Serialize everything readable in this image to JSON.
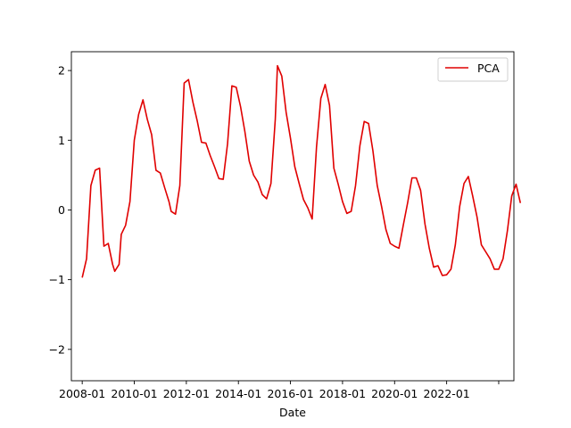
{
  "chart_data": {
    "type": "line",
    "title": "",
    "xlabel": "Date",
    "ylabel": "",
    "x_ticks": [
      "2008-01",
      "2010-01",
      "2012-01",
      "2014-01",
      "2016-01",
      "2018-01",
      "2020-01",
      "2022-01",
      ""
    ],
    "y_ticks": [
      "−2",
      "−1",
      "0",
      "1",
      "2"
    ],
    "xlim": [
      "2007-08",
      "2024-08"
    ],
    "ylim": [
      -2.45,
      2.27
    ],
    "grid": false,
    "legend_position": "top-right",
    "series": [
      {
        "name": "PCA",
        "color": "#e00000",
        "points": [
          [
            "2008-01",
            -0.97
          ],
          [
            "2008-03",
            -0.7
          ],
          [
            "2008-05",
            0.35
          ],
          [
            "2008-07",
            0.57
          ],
          [
            "2008-09",
            0.6
          ],
          [
            "2008-11",
            -0.52
          ],
          [
            "2009-01",
            -0.48
          ],
          [
            "2009-03",
            -0.78
          ],
          [
            "2009-04",
            -0.88
          ],
          [
            "2009-06",
            -0.78
          ],
          [
            "2009-07",
            -0.35
          ],
          [
            "2009-09",
            -0.22
          ],
          [
            "2009-11",
            0.12
          ],
          [
            "2010-01",
            1.0
          ],
          [
            "2010-03",
            1.37
          ],
          [
            "2010-05",
            1.58
          ],
          [
            "2010-07",
            1.3
          ],
          [
            "2010-09",
            1.08
          ],
          [
            "2010-11",
            0.57
          ],
          [
            "2011-01",
            0.53
          ],
          [
            "2011-03",
            0.32
          ],
          [
            "2011-05",
            0.12
          ],
          [
            "2011-06",
            -0.02
          ],
          [
            "2011-08",
            -0.06
          ],
          [
            "2011-10",
            0.35
          ],
          [
            "2011-12",
            1.82
          ],
          [
            "2012-02",
            1.87
          ],
          [
            "2012-04",
            1.55
          ],
          [
            "2012-06",
            1.28
          ],
          [
            "2012-08",
            0.97
          ],
          [
            "2012-10",
            0.96
          ],
          [
            "2012-12",
            0.78
          ],
          [
            "2013-02",
            0.62
          ],
          [
            "2013-04",
            0.45
          ],
          [
            "2013-06",
            0.44
          ],
          [
            "2013-08",
            0.95
          ],
          [
            "2013-10",
            1.78
          ],
          [
            "2013-12",
            1.76
          ],
          [
            "2014-02",
            1.48
          ],
          [
            "2014-04",
            1.12
          ],
          [
            "2014-06",
            0.7
          ],
          [
            "2014-08",
            0.5
          ],
          [
            "2014-10",
            0.4
          ],
          [
            "2014-12",
            0.22
          ],
          [
            "2015-02",
            0.16
          ],
          [
            "2015-04",
            0.38
          ],
          [
            "2015-06",
            1.3
          ],
          [
            "2015-07",
            2.07
          ],
          [
            "2015-09",
            1.92
          ],
          [
            "2015-11",
            1.4
          ],
          [
            "2016-01",
            1.03
          ],
          [
            "2016-03",
            0.62
          ],
          [
            "2016-05",
            0.38
          ],
          [
            "2016-07",
            0.15
          ],
          [
            "2016-09",
            0.03
          ],
          [
            "2016-11",
            -0.13
          ],
          [
            "2017-01",
            0.9
          ],
          [
            "2017-03",
            1.6
          ],
          [
            "2017-05",
            1.8
          ],
          [
            "2017-07",
            1.5
          ],
          [
            "2017-09",
            0.6
          ],
          [
            "2017-11",
            0.37
          ],
          [
            "2018-01",
            0.12
          ],
          [
            "2018-03",
            -0.05
          ],
          [
            "2018-05",
            -0.02
          ],
          [
            "2018-07",
            0.35
          ],
          [
            "2018-09",
            0.92
          ],
          [
            "2018-11",
            1.27
          ],
          [
            "2019-01",
            1.24
          ],
          [
            "2019-03",
            0.85
          ],
          [
            "2019-05",
            0.35
          ],
          [
            "2019-07",
            0.05
          ],
          [
            "2019-09",
            -0.28
          ],
          [
            "2019-11",
            -0.48
          ],
          [
            "2020-01",
            -0.52
          ],
          [
            "2020-03",
            -0.55
          ],
          [
            "2020-05",
            -0.22
          ],
          [
            "2020-07",
            0.1
          ],
          [
            "2020-09",
            0.46
          ],
          [
            "2020-11",
            0.46
          ],
          [
            "2021-01",
            0.28
          ],
          [
            "2021-03",
            -0.2
          ],
          [
            "2021-05",
            -0.55
          ],
          [
            "2021-07",
            -0.82
          ],
          [
            "2021-09",
            -0.8
          ],
          [
            "2021-11",
            -0.94
          ],
          [
            "2022-01",
            -0.93
          ],
          [
            "2022-03",
            -0.85
          ],
          [
            "2022-05",
            -0.5
          ],
          [
            "2022-07",
            0.05
          ],
          [
            "2022-09",
            0.38
          ],
          [
            "2022-11",
            0.48
          ],
          [
            "2023-01",
            0.2
          ],
          [
            "2023-03",
            -0.1
          ],
          [
            "2023-05",
            -0.5
          ],
          [
            "2023-07",
            -0.6
          ],
          [
            "2023-09",
            -0.7
          ],
          [
            "2023-11",
            -0.85
          ],
          [
            "2024-01",
            -0.85
          ],
          [
            "2024-03",
            -0.7
          ],
          [
            "2024-05",
            -0.3
          ],
          [
            "2024-07",
            0.2
          ],
          [
            "2024-09",
            0.37
          ],
          [
            "2024-11",
            0.1
          ]
        ]
      }
    ]
  }
}
